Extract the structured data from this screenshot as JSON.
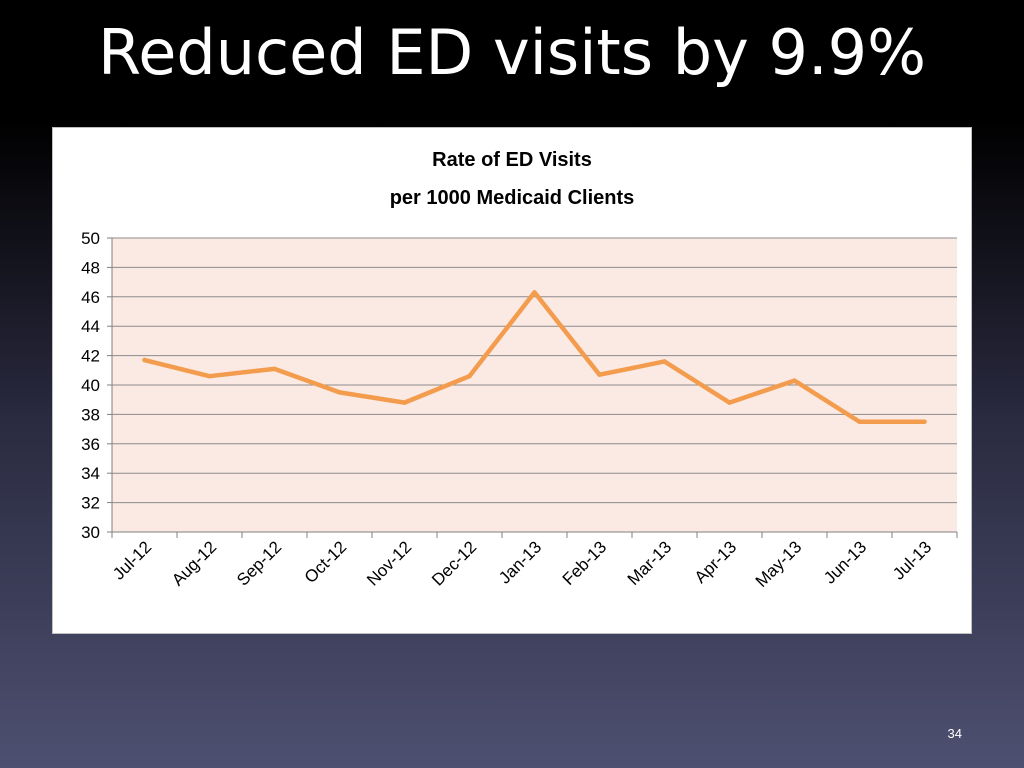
{
  "slide": {
    "title": "Reduced ED visits by 9.9%",
    "page_number": "34"
  },
  "colors": {
    "background_top": "#000000",
    "background_bottom": "#4d5070",
    "plot_area": "#fbe9e3",
    "series_line": "#f39c4d",
    "gridline": "#8c8c8c"
  },
  "chart_data": {
    "type": "line",
    "title": "Rate of ED Visits",
    "subtitle": "per 1000 Medicaid Clients",
    "categories": [
      "Jul-12",
      "Aug-12",
      "Sep-12",
      "Oct-12",
      "Nov-12",
      "Dec-12",
      "Jan-13",
      "Feb-13",
      "Mar-13",
      "Apr-13",
      "May-13",
      "Jun-13",
      "Jul-13"
    ],
    "series": [
      {
        "values": [
          41.7,
          40.6,
          41.1,
          39.5,
          38.8,
          40.6,
          46.3,
          40.7,
          41.6,
          38.8,
          40.3,
          37.5,
          37.5
        ]
      }
    ],
    "ylim": [
      30,
      50
    ],
    "yticks": [
      30,
      32,
      34,
      36,
      38,
      40,
      42,
      44,
      46,
      48,
      50
    ],
    "grid": true,
    "legend": "none"
  }
}
